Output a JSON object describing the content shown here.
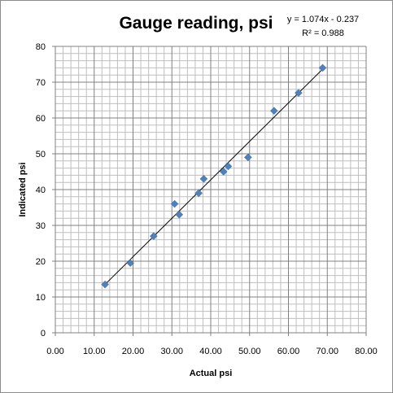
{
  "chart_data": {
    "type": "scatter",
    "title": "Gauge reading, psi",
    "xlabel": "Actual psi",
    "ylabel": "Indicated psi",
    "xlim": [
      0,
      80
    ],
    "ylim": [
      0,
      80
    ],
    "x_ticks": [
      "0.00",
      "10.00",
      "20.00",
      "30.00",
      "40.00",
      "50.00",
      "60.00",
      "70.00",
      "80.00"
    ],
    "y_ticks": [
      "0",
      "10",
      "20",
      "30",
      "40",
      "50",
      "60",
      "70",
      "80"
    ],
    "grid": true,
    "marker_color": "#4f81bd",
    "points": [
      {
        "x": 12.8,
        "y": 13.5
      },
      {
        "x": 19.3,
        "y": 19.5
      },
      {
        "x": 25.3,
        "y": 27
      },
      {
        "x": 30.7,
        "y": 36
      },
      {
        "x": 31.9,
        "y": 33
      },
      {
        "x": 36.9,
        "y": 39
      },
      {
        "x": 38.2,
        "y": 43
      },
      {
        "x": 43.3,
        "y": 45
      },
      {
        "x": 44.5,
        "y": 46.5
      },
      {
        "x": 49.6,
        "y": 49
      },
      {
        "x": 56.3,
        "y": 62
      },
      {
        "x": 62.6,
        "y": 67
      },
      {
        "x": 68.8,
        "y": 74
      }
    ],
    "trendline": {
      "equation": "y = 1.074x - 0.237",
      "r_squared": "R² = 0.988",
      "slope": 1.074,
      "intercept": -0.237,
      "x_range": [
        12.8,
        68.8
      ]
    }
  }
}
